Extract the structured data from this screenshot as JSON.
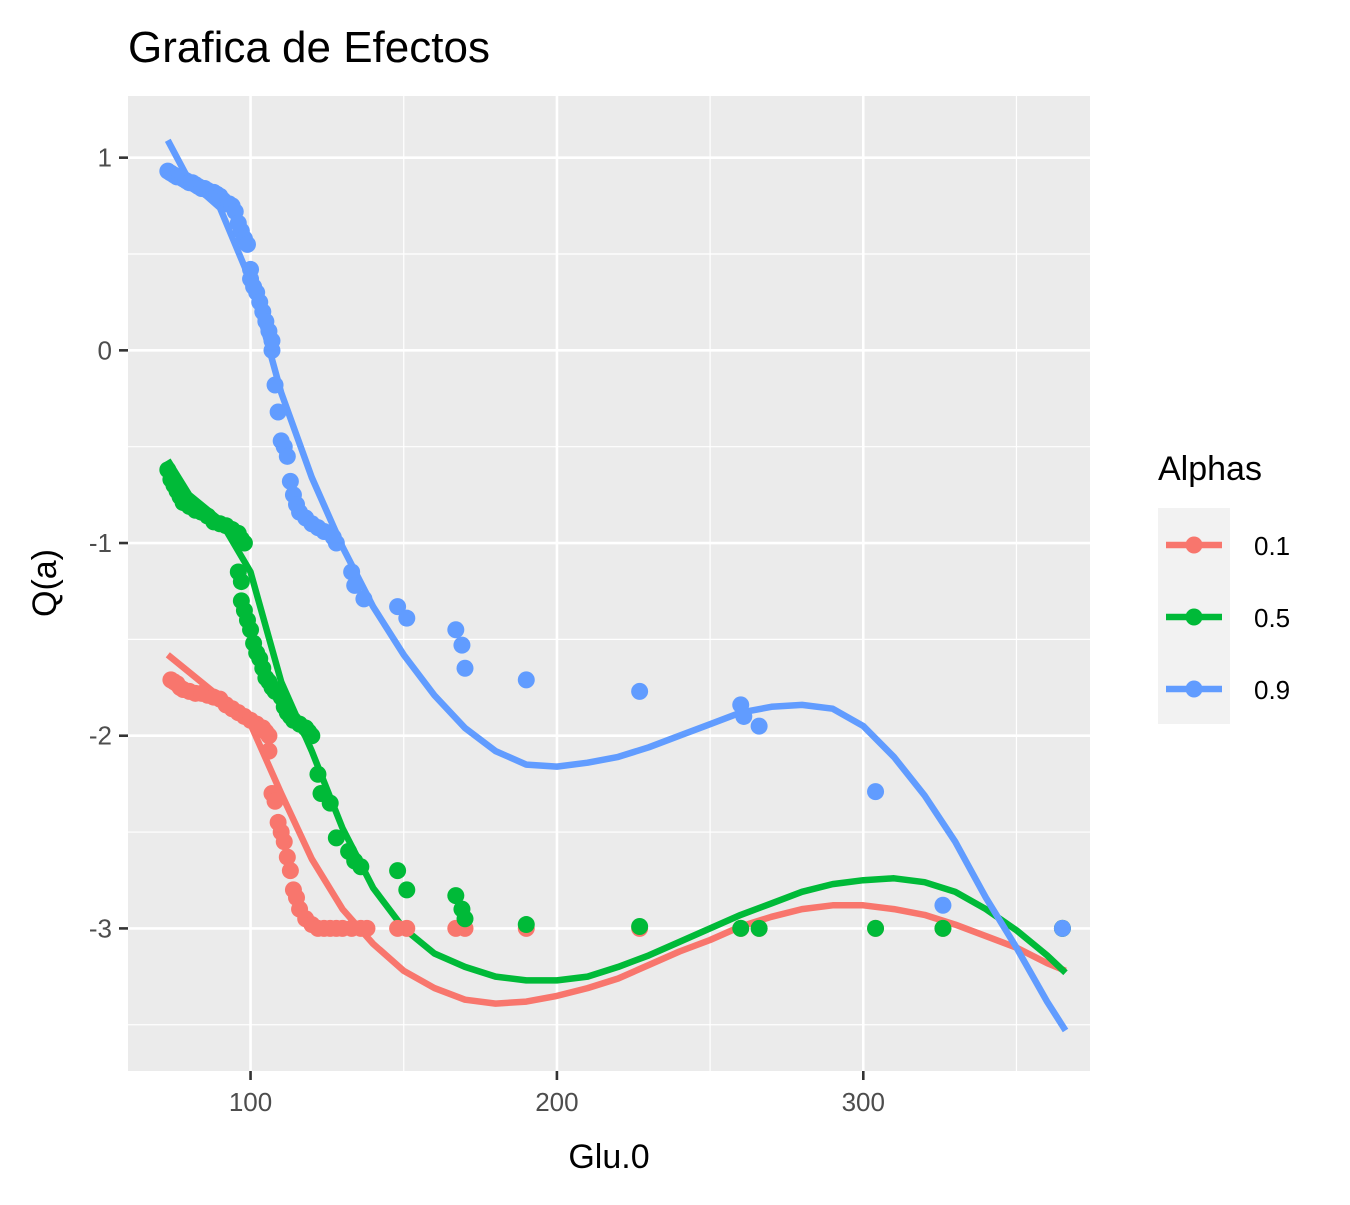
{
  "chart_data": {
    "type": "scatter",
    "title": "Grafica de Efectos",
    "xlabel": "Glu.0",
    "ylabel": "Q(a)",
    "xlim": [
      60,
      374
    ],
    "ylim": [
      -3.74,
      1.32
    ],
    "x_ticks": [
      100,
      200,
      300
    ],
    "x_tick_labels": [
      "100",
      "200",
      "300"
    ],
    "y_ticks": [
      1,
      0,
      -1,
      -2,
      -3
    ],
    "y_tick_labels": [
      "1",
      "0",
      "-1",
      "-2",
      "-3"
    ],
    "grid": true,
    "legend": {
      "title": "Alphas",
      "position": "right"
    },
    "series": [
      {
        "name": "0.1",
        "color": "#F8766D",
        "points": [
          [
            74,
            -1.71
          ],
          [
            75,
            -1.72
          ],
          [
            76,
            -1.73
          ],
          [
            77,
            -1.75
          ],
          [
            78,
            -1.76
          ],
          [
            80,
            -1.77
          ],
          [
            82,
            -1.78
          ],
          [
            84,
            -1.78
          ],
          [
            86,
            -1.79
          ],
          [
            88,
            -1.8
          ],
          [
            90,
            -1.81
          ],
          [
            92,
            -1.84
          ],
          [
            94,
            -1.86
          ],
          [
            96,
            -1.88
          ],
          [
            98,
            -1.9
          ],
          [
            100,
            -1.92
          ],
          [
            102,
            -1.94
          ],
          [
            104,
            -1.96
          ],
          [
            105,
            -1.98
          ],
          [
            106,
            -2.0
          ],
          [
            106,
            -2.08
          ],
          [
            107,
            -2.3
          ],
          [
            108,
            -2.34
          ],
          [
            109,
            -2.45
          ],
          [
            110,
            -2.5
          ],
          [
            111,
            -2.55
          ],
          [
            112,
            -2.63
          ],
          [
            113,
            -2.7
          ],
          [
            114,
            -2.8
          ],
          [
            115,
            -2.84
          ],
          [
            116,
            -2.9
          ],
          [
            118,
            -2.95
          ],
          [
            120,
            -2.98
          ],
          [
            122,
            -3.0
          ],
          [
            124,
            -3.0
          ],
          [
            126,
            -3.0
          ],
          [
            128,
            -3.0
          ],
          [
            130,
            -3.0
          ],
          [
            133,
            -3.0
          ],
          [
            136,
            -3.0
          ],
          [
            138,
            -3.0
          ],
          [
            148,
            -3.0
          ],
          [
            151,
            -3.0
          ],
          [
            167,
            -3.0
          ],
          [
            170,
            -3.0
          ],
          [
            190,
            -3.0
          ],
          [
            227,
            -3.0
          ],
          [
            260,
            -3.0
          ],
          [
            266,
            -3.0
          ],
          [
            304,
            -3.0
          ],
          [
            326,
            -3.0
          ],
          [
            365,
            -3.0
          ]
        ],
        "fit": [
          [
            73,
            -1.58
          ],
          [
            90,
            -1.8
          ],
          [
            100,
            -1.94
          ],
          [
            110,
            -2.3
          ],
          [
            120,
            -2.64
          ],
          [
            130,
            -2.9
          ],
          [
            140,
            -3.08
          ],
          [
            150,
            -3.22
          ],
          [
            160,
            -3.31
          ],
          [
            170,
            -3.37
          ],
          [
            180,
            -3.39
          ],
          [
            190,
            -3.38
          ],
          [
            200,
            -3.35
          ],
          [
            210,
            -3.31
          ],
          [
            220,
            -3.26
          ],
          [
            230,
            -3.19
          ],
          [
            240,
            -3.12
          ],
          [
            250,
            -3.06
          ],
          [
            260,
            -2.99
          ],
          [
            270,
            -2.94
          ],
          [
            280,
            -2.9
          ],
          [
            290,
            -2.88
          ],
          [
            300,
            -2.88
          ],
          [
            310,
            -2.9
          ],
          [
            320,
            -2.93
          ],
          [
            330,
            -2.98
          ],
          [
            340,
            -3.04
          ],
          [
            350,
            -3.1
          ],
          [
            360,
            -3.18
          ],
          [
            366,
            -3.22
          ]
        ]
      },
      {
        "name": "0.5",
        "color": "#00BA38",
        "points": [
          [
            73,
            -0.62
          ],
          [
            74,
            -0.67
          ],
          [
            75,
            -0.7
          ],
          [
            76,
            -0.73
          ],
          [
            77,
            -0.76
          ],
          [
            78,
            -0.79
          ],
          [
            80,
            -0.81
          ],
          [
            82,
            -0.83
          ],
          [
            84,
            -0.84
          ],
          [
            86,
            -0.86
          ],
          [
            88,
            -0.89
          ],
          [
            90,
            -0.9
          ],
          [
            92,
            -0.91
          ],
          [
            94,
            -0.93
          ],
          [
            96,
            -0.95
          ],
          [
            97,
            -0.98
          ],
          [
            98,
            -1.0
          ],
          [
            96,
            -1.15
          ],
          [
            97,
            -1.2
          ],
          [
            97,
            -1.3
          ],
          [
            98,
            -1.35
          ],
          [
            99,
            -1.4
          ],
          [
            100,
            -1.45
          ],
          [
            101,
            -1.52
          ],
          [
            102,
            -1.57
          ],
          [
            103,
            -1.6
          ],
          [
            104,
            -1.65
          ],
          [
            105,
            -1.7
          ],
          [
            106,
            -1.72
          ],
          [
            107,
            -1.75
          ],
          [
            108,
            -1.77
          ],
          [
            110,
            -1.8
          ],
          [
            111,
            -1.85
          ],
          [
            112,
            -1.88
          ],
          [
            113,
            -1.9
          ],
          [
            114,
            -1.92
          ],
          [
            116,
            -1.94
          ],
          [
            118,
            -1.96
          ],
          [
            119,
            -1.98
          ],
          [
            120,
            -2.0
          ],
          [
            122,
            -2.2
          ],
          [
            123,
            -2.3
          ],
          [
            126,
            -2.35
          ],
          [
            128,
            -2.53
          ],
          [
            132,
            -2.6
          ],
          [
            134,
            -2.65
          ],
          [
            136,
            -2.68
          ],
          [
            148,
            -2.7
          ],
          [
            151,
            -2.8
          ],
          [
            167,
            -2.83
          ],
          [
            169,
            -2.9
          ],
          [
            170,
            -2.95
          ],
          [
            190,
            -2.98
          ],
          [
            227,
            -2.99
          ],
          [
            260,
            -3.0
          ],
          [
            266,
            -3.0
          ],
          [
            304,
            -3.0
          ],
          [
            326,
            -3.0
          ],
          [
            365,
            -3.0
          ]
        ],
        "fit": [
          [
            73,
            -0.57
          ],
          [
            80,
            -0.75
          ],
          [
            90,
            -0.88
          ],
          [
            100,
            -1.15
          ],
          [
            110,
            -1.72
          ],
          [
            120,
            -2.08
          ],
          [
            130,
            -2.48
          ],
          [
            140,
            -2.79
          ],
          [
            150,
            -3.0
          ],
          [
            160,
            -3.13
          ],
          [
            170,
            -3.2
          ],
          [
            180,
            -3.25
          ],
          [
            190,
            -3.27
          ],
          [
            200,
            -3.27
          ],
          [
            210,
            -3.25
          ],
          [
            220,
            -3.2
          ],
          [
            230,
            -3.14
          ],
          [
            240,
            -3.07
          ],
          [
            250,
            -3.0
          ],
          [
            260,
            -2.93
          ],
          [
            270,
            -2.87
          ],
          [
            280,
            -2.81
          ],
          [
            290,
            -2.77
          ],
          [
            300,
            -2.75
          ],
          [
            310,
            -2.74
          ],
          [
            320,
            -2.76
          ],
          [
            330,
            -2.81
          ],
          [
            340,
            -2.9
          ],
          [
            350,
            -3.01
          ],
          [
            360,
            -3.14
          ],
          [
            366,
            -3.23
          ]
        ]
      },
      {
        "name": "0.9",
        "color": "#619CFF",
        "points": [
          [
            73,
            0.93
          ],
          [
            74,
            0.92
          ],
          [
            75,
            0.91
          ],
          [
            76,
            0.9
          ],
          [
            77,
            0.9
          ],
          [
            78,
            0.89
          ],
          [
            79,
            0.88
          ],
          [
            80,
            0.87
          ],
          [
            81,
            0.87
          ],
          [
            82,
            0.86
          ],
          [
            83,
            0.85
          ],
          [
            84,
            0.84
          ],
          [
            85,
            0.84
          ],
          [
            86,
            0.83
          ],
          [
            87,
            0.82
          ],
          [
            88,
            0.82
          ],
          [
            89,
            0.81
          ],
          [
            90,
            0.8
          ],
          [
            91,
            0.78
          ],
          [
            92,
            0.76
          ],
          [
            93,
            0.76
          ],
          [
            94,
            0.75
          ],
          [
            95,
            0.72
          ],
          [
            96,
            0.66
          ],
          [
            97,
            0.62
          ],
          [
            98,
            0.58
          ],
          [
            99,
            0.55
          ],
          [
            100,
            0.42
          ],
          [
            100,
            0.37
          ],
          [
            101,
            0.33
          ],
          [
            102,
            0.3
          ],
          [
            103,
            0.25
          ],
          [
            104,
            0.2
          ],
          [
            105,
            0.15
          ],
          [
            106,
            0.1
          ],
          [
            107,
            0.05
          ],
          [
            107,
            0.0
          ],
          [
            108,
            -0.18
          ],
          [
            109,
            -0.32
          ],
          [
            110,
            -0.47
          ],
          [
            111,
            -0.5
          ],
          [
            112,
            -0.55
          ],
          [
            113,
            -0.68
          ],
          [
            114,
            -0.75
          ],
          [
            115,
            -0.8
          ],
          [
            116,
            -0.84
          ],
          [
            118,
            -0.87
          ],
          [
            120,
            -0.9
          ],
          [
            122,
            -0.92
          ],
          [
            124,
            -0.94
          ],
          [
            127,
            -0.97
          ],
          [
            128,
            -1.0
          ],
          [
            133,
            -1.15
          ],
          [
            134,
            -1.22
          ],
          [
            137,
            -1.29
          ],
          [
            148,
            -1.33
          ],
          [
            151,
            -1.39
          ],
          [
            167,
            -1.45
          ],
          [
            169,
            -1.53
          ],
          [
            170,
            -1.65
          ],
          [
            190,
            -1.71
          ],
          [
            227,
            -1.77
          ],
          [
            260,
            -1.84
          ],
          [
            261,
            -1.9
          ],
          [
            266,
            -1.95
          ],
          [
            304,
            -2.29
          ],
          [
            326,
            -2.88
          ],
          [
            365,
            -3.0
          ]
        ],
        "fit": [
          [
            73,
            1.09
          ],
          [
            80,
            0.88
          ],
          [
            90,
            0.74
          ],
          [
            100,
            0.36
          ],
          [
            110,
            -0.22
          ],
          [
            120,
            -0.66
          ],
          [
            130,
            -1.02
          ],
          [
            140,
            -1.33
          ],
          [
            150,
            -1.58
          ],
          [
            160,
            -1.79
          ],
          [
            170,
            -1.96
          ],
          [
            180,
            -2.08
          ],
          [
            190,
            -2.15
          ],
          [
            200,
            -2.16
          ],
          [
            210,
            -2.14
          ],
          [
            220,
            -2.11
          ],
          [
            230,
            -2.06
          ],
          [
            240,
            -2.0
          ],
          [
            250,
            -1.94
          ],
          [
            260,
            -1.88
          ],
          [
            270,
            -1.85
          ],
          [
            280,
            -1.84
          ],
          [
            290,
            -1.86
          ],
          [
            300,
            -1.95
          ],
          [
            310,
            -2.11
          ],
          [
            320,
            -2.31
          ],
          [
            330,
            -2.55
          ],
          [
            340,
            -2.84
          ],
          [
            350,
            -3.1
          ],
          [
            360,
            -3.38
          ],
          [
            366,
            -3.53
          ]
        ]
      }
    ]
  }
}
